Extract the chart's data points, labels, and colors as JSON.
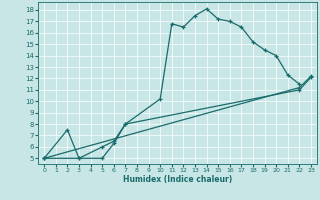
{
  "xlabel": "Humidex (Indice chaleur)",
  "xlim": [
    -0.5,
    23.5
  ],
  "ylim": [
    4.5,
    18.7
  ],
  "xticks": [
    0,
    1,
    2,
    3,
    4,
    5,
    6,
    7,
    8,
    9,
    10,
    11,
    12,
    13,
    14,
    15,
    16,
    17,
    18,
    19,
    20,
    21,
    22,
    23
  ],
  "yticks": [
    5,
    6,
    7,
    8,
    9,
    10,
    11,
    12,
    13,
    14,
    15,
    16,
    17,
    18
  ],
  "bg_color": "#c8e6e6",
  "line_color": "#1a6b6b",
  "grid_color": "#b0d8d8",
  "series1_x": [
    0,
    2,
    3,
    5,
    6,
    7,
    10,
    11,
    12,
    13,
    14,
    15,
    16,
    17,
    18,
    19,
    20,
    21,
    22
  ],
  "series1_y": [
    5,
    7.5,
    5,
    5,
    6.3,
    8.0,
    10.2,
    16.8,
    16.5,
    17.5,
    18.1,
    17.2,
    17.0,
    16.5,
    15.2,
    14.5,
    14.0,
    12.3,
    11.5
  ],
  "series2_x": [
    0,
    22,
    23
  ],
  "series2_y": [
    5,
    11.2,
    12.2
  ],
  "series3_x": [
    0,
    3,
    5,
    6,
    7,
    22,
    23
  ],
  "series3_y": [
    5,
    5.0,
    6.0,
    6.5,
    8.0,
    11.0,
    12.1
  ]
}
